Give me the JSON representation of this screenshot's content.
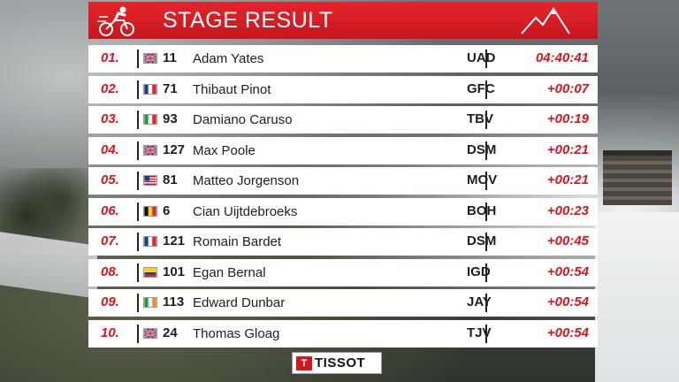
{
  "header": {
    "title": "STAGE RESULT"
  },
  "results": [
    {
      "pos": "01.",
      "flag": "gb",
      "bib": "11",
      "rider": "Adam Yates",
      "team": "UAD",
      "time": "04:40:41"
    },
    {
      "pos": "02.",
      "flag": "fr",
      "bib": "71",
      "rider": "Thibaut Pinot",
      "team": "GFC",
      "time": "+00:07"
    },
    {
      "pos": "03.",
      "flag": "it",
      "bib": "93",
      "rider": "Damiano Caruso",
      "team": "TBV",
      "time": "+00:19"
    },
    {
      "pos": "04.",
      "flag": "gb",
      "bib": "127",
      "rider": "Max Poole",
      "team": "DSM",
      "time": "+00:21"
    },
    {
      "pos": "05.",
      "flag": "us",
      "bib": "81",
      "rider": "Matteo Jorgenson",
      "team": "MOV",
      "time": "+00:21"
    },
    {
      "pos": "06.",
      "flag": "be",
      "bib": "6",
      "rider": "Cian Uijtdebroeks",
      "team": "BOH",
      "time": "+00:23"
    },
    {
      "pos": "07.",
      "flag": "fr",
      "bib": "121",
      "rider": "Romain Bardet",
      "team": "DSM",
      "time": "+00:45"
    },
    {
      "pos": "08.",
      "flag": "co",
      "bib": "101",
      "rider": "Egan Bernal",
      "team": "IGD",
      "time": "+00:54"
    },
    {
      "pos": "09.",
      "flag": "ie",
      "bib": "113",
      "rider": "Edward Dunbar",
      "team": "JAY",
      "time": "+00:54"
    },
    {
      "pos": "10.",
      "flag": "gb",
      "bib": "24",
      "rider": "Thomas Gloag",
      "team": "TJV",
      "time": "+00:54"
    }
  ],
  "sponsor": {
    "mark": "T",
    "name": "TISSOT"
  },
  "icons": {
    "logo": "cyclist-logo-icon",
    "mountain": "mountain-icon"
  },
  "colors": {
    "accent": "#d9151b",
    "header": "#e4252b",
    "row": "#ffffff"
  }
}
